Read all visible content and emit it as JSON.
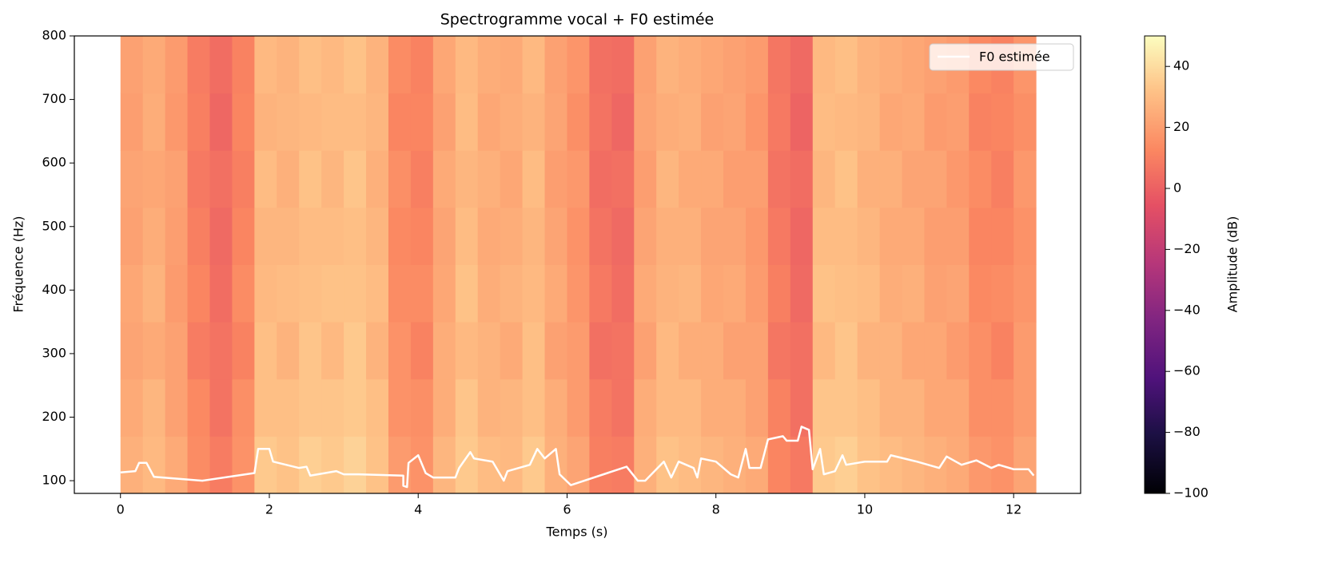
{
  "chart_data": {
    "type": "heatmap",
    "title": "Spectrogramme vocal + F0 estimée",
    "xlabel": "Temps (s)",
    "ylabel": "Fréquence (Hz)",
    "colormap": "magma",
    "x": [
      0.15,
      0.45,
      0.75,
      1.05,
      1.35,
      1.65,
      1.95,
      2.25,
      2.55,
      2.85,
      3.15,
      3.45,
      3.75,
      4.05,
      4.35,
      4.65,
      4.95,
      5.25,
      5.55,
      5.85,
      6.15,
      6.45,
      6.75,
      7.05,
      7.35,
      7.65,
      7.95,
      8.25,
      8.55,
      8.85,
      9.15,
      9.45,
      9.75,
      10.05,
      10.35,
      10.65,
      10.95,
      11.25,
      11.55,
      11.85,
      12.15
    ],
    "y": [
      125,
      215,
      305,
      395,
      485,
      575,
      665,
      755
    ],
    "z": [
      [
        26,
        29,
        24,
        14,
        9,
        16,
        34,
        32,
        36,
        34,
        37,
        32,
        19,
        16,
        28,
        34,
        30,
        29,
        34,
        26,
        22,
        10,
        9,
        26,
        32,
        30,
        28,
        26,
        24,
        12,
        8,
        34,
        36,
        32,
        30,
        28,
        26,
        24,
        18,
        16,
        22
      ],
      [
        24,
        28,
        21,
        13,
        6,
        15,
        31,
        31,
        33,
        33,
        34,
        31,
        16,
        15,
        25,
        33,
        27,
        28,
        31,
        25,
        19,
        9,
        6,
        25,
        29,
        29,
        25,
        25,
        21,
        11,
        5,
        33,
        33,
        31,
        27,
        27,
        23,
        23,
        15,
        15,
        19
      ],
      [
        22,
        24,
        21,
        9,
        6,
        11,
        31,
        27,
        33,
        29,
        34,
        27,
        16,
        11,
        25,
        29,
        27,
        24,
        31,
        21,
        19,
        5,
        6,
        21,
        29,
        25,
        25,
        21,
        21,
        7,
        5,
        29,
        33,
        27,
        27,
        23,
        23,
        19,
        15,
        11,
        19
      ],
      [
        23,
        27,
        19,
        12,
        4,
        14,
        29,
        30,
        31,
        32,
        32,
        30,
        14,
        14,
        23,
        32,
        25,
        27,
        29,
        24,
        17,
        8,
        4,
        24,
        27,
        28,
        23,
        24,
        19,
        10,
        3,
        32,
        31,
        30,
        25,
        26,
        21,
        22,
        13,
        14,
        17
      ],
      [
        21,
        25,
        20,
        10,
        3,
        12,
        28,
        28,
        30,
        30,
        31,
        28,
        13,
        12,
        22,
        30,
        24,
        25,
        28,
        22,
        16,
        6,
        3,
        22,
        26,
        26,
        22,
        22,
        18,
        8,
        2,
        30,
        30,
        28,
        24,
        24,
        20,
        20,
        12,
        12,
        16
      ],
      [
        22,
        23,
        21,
        8,
        5,
        10,
        30,
        26,
        32,
        28,
        33,
        26,
        15,
        10,
        24,
        28,
        26,
        23,
        30,
        20,
        18,
        4,
        5,
        20,
        28,
        24,
        24,
        20,
        20,
        6,
        4,
        28,
        32,
        26,
        26,
        22,
        22,
        18,
        14,
        10,
        18
      ],
      [
        20,
        25,
        18,
        10,
        2,
        12,
        27,
        28,
        29,
        30,
        30,
        28,
        12,
        12,
        21,
        30,
        23,
        25,
        27,
        22,
        15,
        6,
        2,
        22,
        25,
        26,
        21,
        22,
        17,
        8,
        1,
        30,
        29,
        28,
        23,
        24,
        19,
        20,
        11,
        12,
        15
      ],
      [
        21,
        24,
        19,
        9,
        4,
        11,
        29,
        27,
        31,
        29,
        32,
        27,
        14,
        11,
        23,
        29,
        25,
        24,
        29,
        21,
        17,
        5,
        4,
        21,
        27,
        25,
        23,
        21,
        19,
        7,
        3,
        29,
        31,
        27,
        25,
        23,
        21,
        19,
        13,
        11,
        17
      ]
    ],
    "zlim": [
      -100,
      50
    ],
    "series": [
      {
        "name": "F0 estimée",
        "color": "#ffffff",
        "x": [
          0,
          0.2,
          0.25,
          0.35,
          0.45,
          1.1,
          1.8,
          1.85,
          2.0,
          2.05,
          2.4,
          2.5,
          2.55,
          2.9,
          3.0,
          3.2,
          3.8,
          3.8,
          3.85,
          3.87,
          4.0,
          4.1,
          4.2,
          4.5,
          4.55,
          4.7,
          4.75,
          5.0,
          5.15,
          5.2,
          5.5,
          5.6,
          5.7,
          5.85,
          5.9,
          6.05,
          6.8,
          6.95,
          7.05,
          7.3,
          7.4,
          7.5,
          7.7,
          7.75,
          7.8,
          8.0,
          8.2,
          8.3,
          8.4,
          8.45,
          8.6,
          8.7,
          8.9,
          8.95,
          9.1,
          9.15,
          9.25,
          9.3,
          9.4,
          9.45,
          9.6,
          9.7,
          9.75,
          10.0,
          10.3,
          10.35,
          10.7,
          11.0,
          11.1,
          11.3,
          11.5,
          11.7,
          11.8,
          12.0,
          12.2,
          12.27
        ],
        "values": [
          113,
          115,
          128,
          128,
          106,
          100,
          112,
          150,
          150,
          130,
          120,
          122,
          108,
          115,
          110,
          110,
          108,
          92,
          90,
          128,
          140,
          112,
          105,
          105,
          120,
          145,
          135,
          130,
          100,
          115,
          125,
          150,
          135,
          150,
          110,
          93,
          122,
          100,
          100,
          130,
          105,
          130,
          120,
          105,
          135,
          130,
          110,
          105,
          150,
          120,
          120,
          165,
          170,
          163,
          163,
          185,
          180,
          118,
          150,
          110,
          115,
          140,
          125,
          130,
          130,
          140,
          130,
          120,
          138,
          125,
          132,
          120,
          125,
          118,
          118,
          108
        ]
      }
    ],
    "legend": "upper right",
    "xlim": [
      -0.62,
      12.9
    ],
    "ylim": [
      80,
      800
    ],
    "xticks": [
      0,
      2,
      4,
      6,
      8,
      10,
      12
    ],
    "yticks": [
      100,
      200,
      300,
      400,
      500,
      600,
      700,
      800
    ],
    "colorbar": {
      "label": "Amplitude (dB)",
      "ticks": [
        {
          "value": -100,
          "label": "−100"
        },
        {
          "value": -80,
          "label": "−80"
        },
        {
          "value": -60,
          "label": "−60"
        },
        {
          "value": -40,
          "label": "−40"
        },
        {
          "value": -20,
          "label": "−20"
        },
        0,
        20,
        40
      ]
    }
  }
}
